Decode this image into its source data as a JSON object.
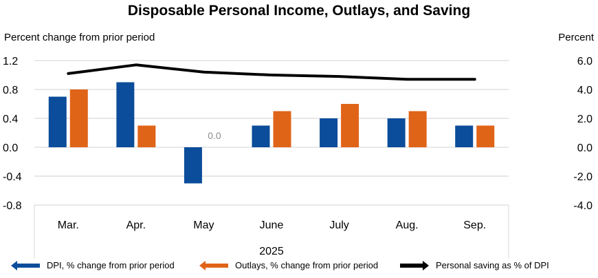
{
  "chart_data": {
    "type": "bar",
    "title": "Disposable Personal Income, Outlays, and Saving",
    "ylabel_left": "Percent change from prior period",
    "ylabel_right": "Percent",
    "xlabel": "2025",
    "categories": [
      "Mar.",
      "Apr.",
      "May",
      "June",
      "July",
      "Aug.",
      "Sep."
    ],
    "ylim_left": [
      -0.8,
      1.2
    ],
    "yticks_left": [
      "1.2",
      "0.8",
      "0.4",
      "0.0",
      "-0.4",
      "-0.8"
    ],
    "ytick_values_left": [
      1.2,
      0.8,
      0.4,
      0.0,
      -0.4,
      -0.8
    ],
    "ylim_right": [
      -4.0,
      6.0
    ],
    "yticks_right": [
      "6.0",
      "4.0",
      "2.0",
      "0.0",
      "-2.0",
      "-4.0"
    ],
    "ytick_values_right": [
      6.0,
      4.0,
      2.0,
      0.0,
      -2.0,
      -4.0
    ],
    "grid": true,
    "legend_position": "bottom",
    "series": [
      {
        "name": "DPI, % change from prior period",
        "type": "bar",
        "axis": "left",
        "color": "#0B4D9A",
        "values": [
          0.7,
          0.9,
          -0.5,
          0.3,
          0.4,
          0.4,
          0.3
        ]
      },
      {
        "name": "Outlays, % change from prior period",
        "type": "bar",
        "axis": "left",
        "color": "#E06418",
        "values": [
          0.8,
          0.3,
          0.0,
          0.5,
          0.6,
          0.5,
          0.3
        ]
      },
      {
        "name": "Personal saving as % of DPI",
        "type": "line",
        "axis": "right",
        "color": "#000000",
        "values": [
          5.1,
          5.7,
          5.2,
          5.0,
          4.9,
          4.7,
          4.7
        ]
      }
    ],
    "annotations": [
      {
        "category": "May",
        "series": "Outlays, % change from prior period",
        "text": "0.0"
      }
    ]
  }
}
